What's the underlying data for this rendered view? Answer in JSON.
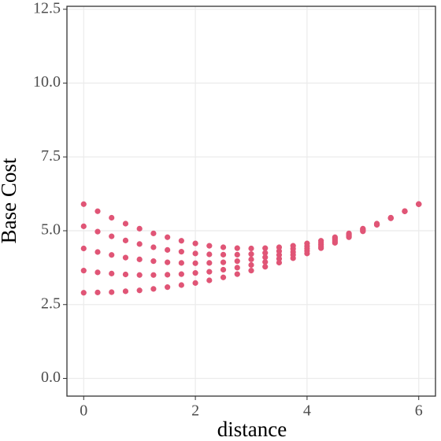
{
  "chart_data": {
    "type": "scatter",
    "x_label": "distance",
    "y_label": "Base Cost",
    "color": "#e05576",
    "grid": true,
    "xlim": [
      -0.3,
      6.3
    ],
    "xticks": [
      0,
      2,
      4,
      6
    ],
    "ylim": [
      -0.6,
      12.6
    ],
    "yticks": [
      {
        "value": 0,
        "label": "0.0"
      },
      2.5,
      {
        "value": 5,
        "label": "5.0"
      },
      7.5,
      {
        "value": 10,
        "label": "10.0"
      },
      12.5
    ],
    "x": [
      0,
      0,
      0,
      0,
      0,
      0.25,
      0.25,
      0.25,
      0.25,
      0.25,
      0.5,
      0.5,
      0.5,
      0.5,
      0.5,
      0.75,
      0.75,
      0.75,
      0.75,
      0.75,
      1,
      1,
      1,
      1,
      1,
      1.25,
      1.25,
      1.25,
      1.25,
      1.25,
      1.5,
      1.5,
      1.5,
      1.5,
      1.5,
      1.75,
      1.75,
      1.75,
      1.75,
      1.75,
      2,
      2,
      2,
      2,
      2,
      2.25,
      2.25,
      2.25,
      2.25,
      2.25,
      2.5,
      2.5,
      2.5,
      2.5,
      2.5,
      2.75,
      2.75,
      2.75,
      2.75,
      2.75,
      3,
      3,
      3,
      3,
      3,
      3.25,
      3.25,
      3.25,
      3.25,
      3.25,
      3.5,
      3.5,
      3.5,
      3.5,
      3.5,
      3.75,
      3.75,
      3.75,
      3.75,
      3.75,
      4,
      4,
      4,
      4,
      4,
      4.25,
      4.25,
      4.25,
      4.25,
      4.25,
      4.5,
      4.5,
      4.5,
      4.5,
      4.5,
      4.75,
      4.75,
      4.75,
      4.75,
      4.75,
      5,
      5,
      5,
      5,
      5,
      5.25,
      5.25,
      5.25,
      5.25,
      5.25,
      5.5,
      5.5,
      5.5,
      5.5,
      5.5,
      5.75,
      5.75,
      5.75,
      5.75,
      5.75,
      6,
      6,
      6,
      6,
      6
    ],
    "values": [
      2.9,
      3.65,
      4.4,
      5.15,
      5.9,
      2.91,
      3.59,
      4.28,
      4.97,
      5.66,
      2.92,
      3.55,
      4.18,
      4.81,
      5.44,
      2.95,
      3.52,
      4.09,
      4.67,
      5.24,
      2.98,
      3.5,
      4.03,
      4.55,
      5.07,
      3.03,
      3.5,
      3.97,
      4.44,
      4.91,
      3.09,
      3.51,
      3.93,
      4.35,
      4.78,
      3.16,
      3.53,
      3.91,
      4.29,
      4.66,
      3.23,
      3.57,
      3.9,
      4.23,
      4.57,
      3.32,
      3.61,
      3.91,
      4.2,
      4.49,
      3.42,
      3.68,
      3.93,
      4.19,
      4.44,
      3.53,
      3.75,
      3.97,
      4.19,
      4.41,
      3.65,
      3.84,
      4.03,
      4.21,
      4.4,
      3.78,
      3.94,
      4.1,
      4.25,
      4.41,
      3.92,
      4.05,
      4.18,
      4.31,
      4.44,
      4.07,
      4.18,
      4.28,
      4.39,
      4.49,
      4.23,
      4.32,
      4.4,
      4.48,
      4.57,
      4.41,
      4.47,
      4.53,
      4.6,
      4.66,
      4.59,
      4.63,
      4.68,
      4.73,
      4.78,
      4.78,
      4.81,
      4.85,
      4.88,
      4.91,
      4.98,
      5.0,
      5.03,
      5.05,
      5.07,
      5.2,
      5.21,
      5.22,
      5.23,
      5.24,
      5.42,
      5.43,
      5.43,
      5.44,
      5.44,
      5.66,
      5.66,
      5.66,
      5.66,
      5.66,
      5.9,
      5.9,
      5.9,
      5.9,
      5.9
    ]
  }
}
